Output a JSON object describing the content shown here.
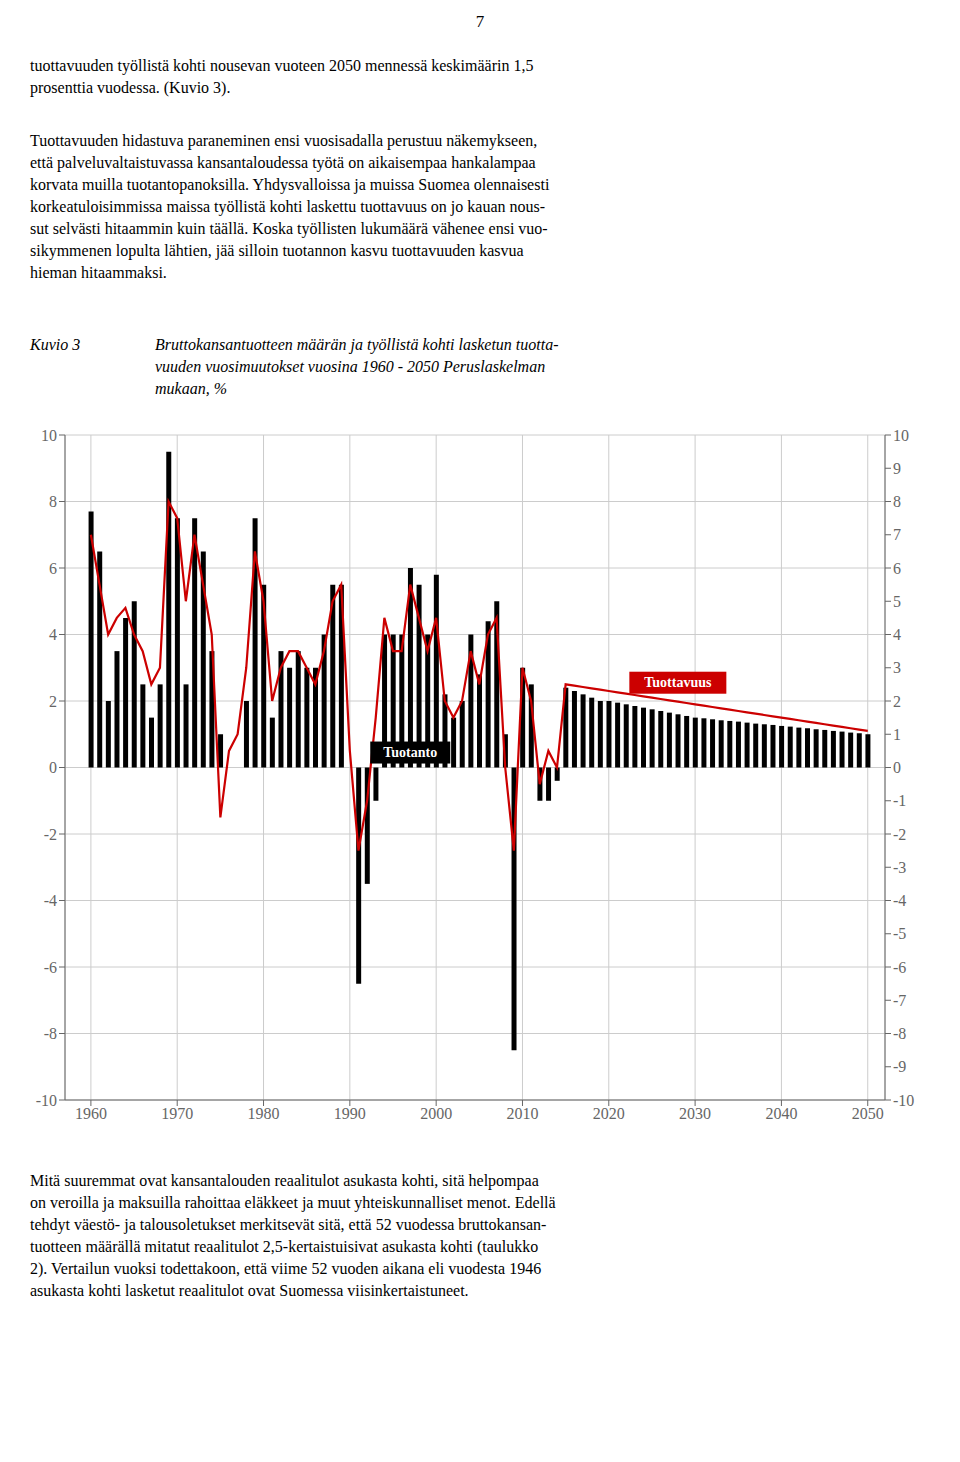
{
  "page_number": "7",
  "text_top": [
    "tuottavuuden työllistä kohti nousevan vuoteen 2050 mennessä keskimäärin 1,5",
    "prosenttia vuodessa. (Kuvio 3)."
  ],
  "paragraph": [
    "Tuottavuuden hidastuva paraneminen ensi vuosisadalla perustuu näkemykseen,",
    "että palveluvaltaistuvassa kansantaloudessa työtä on aikaisempaa hankalampaa",
    "korvata muilla tuotantopanoksilla. Yhdysvalloissa ja muissa Suomea olennaisesti",
    "korkeatuloisimmissa maissa työllistä kohti laskettu tuottavuus on jo kauan nous-",
    "sut selvästi hitaammin kuin täällä. Koska työllisten lukumäärä vähenee ensi vuo-",
    "sikymmenen lopulta lähtien, jää silloin tuotannon kasvu tuottavuuden kasvua",
    "hieman hitaammaksi."
  ],
  "text_bottom": [
    "Mitä suuremmat ovat kansantalouden reaalitulot asukasta kohti, sitä helpompaa",
    "on veroilla ja maksuilla rahoittaa eläkkeet ja muut yhteiskunnalliset menot. Edellä",
    "tehdyt väestö- ja talousoletukset merkitsevät sitä, että 52 vuodessa bruttokansan-",
    "tuotteen määrällä mitatut reaalitulot 2,5-kertaistuisivat asukasta kohti (taulukko",
    "2). Vertailun vuoksi todettakoon, että viime 52 vuoden aikana eli vuodesta 1946",
    "asukasta kohti lasketut reaalitulot ovat Suomessa viisinkertaistuneet."
  ],
  "chart_data": {
    "type": "bar",
    "title_label": "Kuvio 3",
    "title_lines": [
      "Bruttokansantuotteen määrän ja työllistä kohti lasketun tuotta-",
      "vuuden vuosimuutokset vuosina 1960 - 2050 Peruslaskelman",
      "mukaan, %"
    ],
    "x": [
      1960,
      1961,
      1962,
      1963,
      1964,
      1965,
      1966,
      1967,
      1968,
      1969,
      1970,
      1971,
      1972,
      1973,
      1974,
      1975,
      1976,
      1977,
      1978,
      1979,
      1980,
      1981,
      1982,
      1983,
      1984,
      1985,
      1986,
      1987,
      1988,
      1989,
      1990,
      1991,
      1992,
      1993,
      1994,
      1995,
      1996,
      1997,
      1998,
      1999,
      2000,
      2001,
      2002,
      2003,
      2004,
      2005,
      2006,
      2007,
      2008,
      2009,
      2010,
      2011,
      2012,
      2013,
      2014,
      2015,
      2016,
      2017,
      2018,
      2019,
      2020,
      2021,
      2022,
      2023,
      2024,
      2025,
      2026,
      2027,
      2028,
      2029,
      2030,
      2031,
      2032,
      2033,
      2034,
      2035,
      2036,
      2037,
      2038,
      2039,
      2040,
      2041,
      2042,
      2043,
      2044,
      2045,
      2046,
      2047,
      2048,
      2049,
      2050
    ],
    "xlim": [
      1957,
      2052
    ],
    "xticks": [
      1960,
      1970,
      1980,
      1990,
      2000,
      2010,
      2020,
      2030,
      2040,
      2050
    ],
    "ylim": [
      -10,
      10
    ],
    "yticks": [
      10,
      8,
      6,
      4,
      2,
      0,
      -2,
      -4,
      -6,
      -8,
      -10
    ],
    "y2lim": [
      -10,
      10
    ],
    "y2ticks": [
      10,
      9,
      8,
      7,
      6,
      5,
      4,
      3,
      2,
      1,
      0,
      -1,
      -2,
      -3,
      -4,
      -5,
      -6,
      -7,
      -8,
      -9,
      -10
    ],
    "grid": true,
    "series": [
      {
        "name": "Tuotanto",
        "type": "bar",
        "color": "#000000",
        "values": [
          7.7,
          6.5,
          2.0,
          3.5,
          4.5,
          5.0,
          2.5,
          1.5,
          2.5,
          9.5,
          7.5,
          2.5,
          7.5,
          6.5,
          3.5,
          1.0,
          0.0,
          0.0,
          2.0,
          7.5,
          5.5,
          1.5,
          3.5,
          3.0,
          3.5,
          3.0,
          3.0,
          4.0,
          5.5,
          5.5,
          0.0,
          -6.5,
          -3.5,
          -1.0,
          4.0,
          4.0,
          4.0,
          6.0,
          5.5,
          4.0,
          5.8,
          2.2,
          1.5,
          2.0,
          4.0,
          2.8,
          4.4,
          5.0,
          1.0,
          -8.5,
          3.0,
          2.5,
          -1.0,
          -1.0,
          -0.4,
          2.4,
          2.3,
          2.2,
          2.1,
          2.0,
          2.0,
          1.95,
          1.9,
          1.85,
          1.8,
          1.75,
          1.7,
          1.65,
          1.6,
          1.55,
          1.5,
          1.48,
          1.45,
          1.42,
          1.4,
          1.38,
          1.35,
          1.32,
          1.3,
          1.28,
          1.25,
          1.23,
          1.2,
          1.18,
          1.15,
          1.13,
          1.1,
          1.08,
          1.05,
          1.03,
          1.0
        ]
      },
      {
        "name": "Tuottavuus",
        "type": "line",
        "color": "#cc0000",
        "values": [
          7.0,
          5.5,
          4.0,
          4.5,
          4.8,
          4.0,
          3.5,
          2.5,
          3.0,
          8.0,
          7.5,
          5.0,
          7.0,
          5.5,
          4.0,
          -1.5,
          0.5,
          1.0,
          3.0,
          6.5,
          5.0,
          2.0,
          3.0,
          3.5,
          3.5,
          3.0,
          2.5,
          3.5,
          5.0,
          5.5,
          0.5,
          -2.5,
          -1.0,
          1.5,
          4.5,
          3.5,
          3.5,
          5.5,
          4.5,
          3.5,
          4.5,
          2.0,
          1.5,
          2.0,
          3.5,
          2.5,
          4.0,
          4.5,
          0.0,
          -2.5,
          3.0,
          2.0,
          -0.5,
          0.5,
          0.0,
          2.5,
          2.46,
          2.42,
          2.38,
          2.34,
          2.3,
          2.26,
          2.22,
          2.18,
          2.14,
          2.1,
          2.06,
          2.02,
          1.98,
          1.94,
          1.9,
          1.86,
          1.82,
          1.78,
          1.74,
          1.7,
          1.66,
          1.62,
          1.58,
          1.54,
          1.5,
          1.46,
          1.42,
          1.38,
          1.34,
          1.3,
          1.26,
          1.22,
          1.18,
          1.14,
          1.1
        ]
      }
    ],
    "annotations": [
      {
        "text": "Tuotanto",
        "x": 1997,
        "y": 0.45,
        "color": "#000000",
        "text_color": "#ffffff"
      },
      {
        "text": "Tuottavuus",
        "x": 2028,
        "y": 2.55,
        "color": "#cc0000",
        "text_color": "#ffffff"
      }
    ]
  }
}
